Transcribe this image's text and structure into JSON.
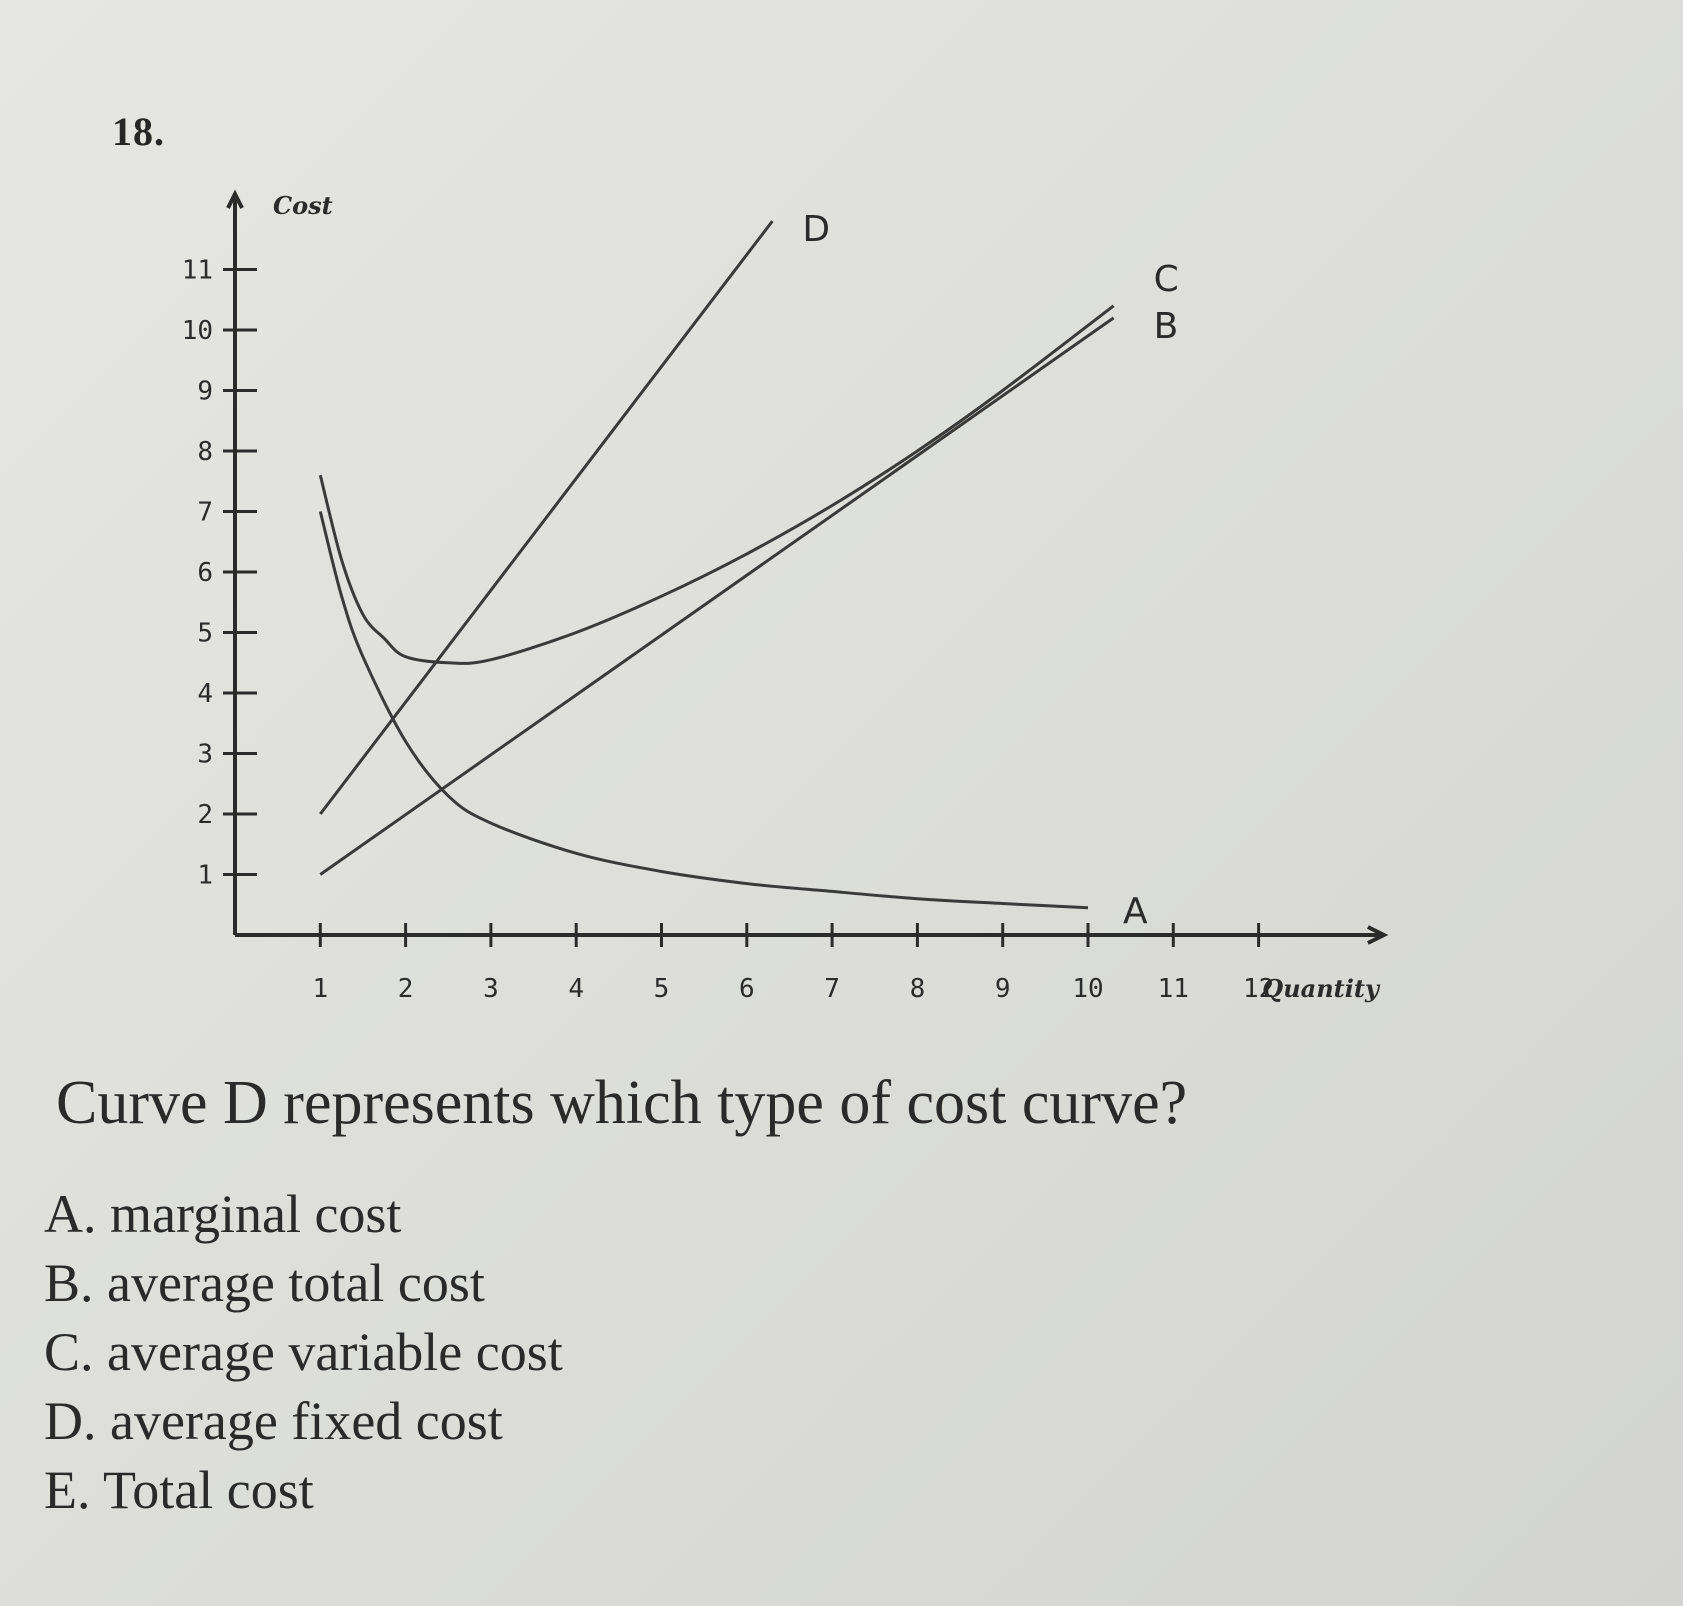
{
  "question_number": "18.",
  "question": "Curve D represents which type of cost curve?",
  "options": [
    {
      "letter": "A.",
      "text": "marginal cost"
    },
    {
      "letter": "B.",
      "text": "average total cost"
    },
    {
      "letter": "C.",
      "text": "average variable cost"
    },
    {
      "letter": "D.",
      "text": "average fixed cost"
    },
    {
      "letter": "E.",
      "text": "Total cost"
    }
  ],
  "chart_data": {
    "type": "line",
    "title": "",
    "xlabel": "Quantity",
    "ylabel": "Cost",
    "xlim": [
      0,
      13
    ],
    "ylim": [
      0,
      12
    ],
    "x_ticks": [
      1,
      2,
      3,
      4,
      5,
      6,
      7,
      8,
      9,
      10,
      11,
      12
    ],
    "y_ticks": [
      1,
      2,
      3,
      4,
      5,
      6,
      7,
      8,
      9,
      10,
      11
    ],
    "grid": false,
    "legend": "none",
    "series": [
      {
        "name": "A",
        "x": [
          1,
          1.25,
          1.5,
          2,
          2.5,
          3,
          4,
          5,
          6,
          7,
          8,
          9,
          10
        ],
        "y": [
          7,
          5.6,
          4.6,
          3.2,
          2.3,
          1.85,
          1.35,
          1.05,
          0.85,
          0.72,
          0.6,
          0.52,
          0.45
        ]
      },
      {
        "name": "B",
        "x": [
          1,
          10.3
        ],
        "y": [
          1,
          10.2
        ]
      },
      {
        "name": "C",
        "x": [
          1,
          1.25,
          1.5,
          1.75,
          2,
          2.5,
          3,
          4,
          5,
          6,
          7,
          8,
          9,
          10.3
        ],
        "y": [
          7.6,
          6.2,
          5.3,
          4.9,
          4.6,
          4.5,
          4.55,
          5,
          5.6,
          6.3,
          7.1,
          8,
          9,
          10.4
        ]
      },
      {
        "name": "D",
        "x": [
          1,
          6.3
        ],
        "y": [
          2,
          11.8
        ]
      }
    ]
  }
}
